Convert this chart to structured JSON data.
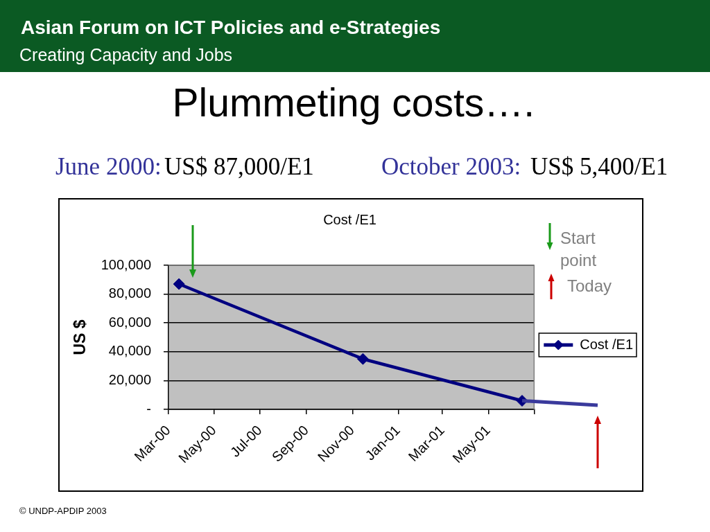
{
  "chart_data": {
    "type": "line",
    "title": "Cost /E1",
    "ylabel": "US $",
    "x": [
      "2000-03-15",
      "2000-11-15",
      "2001-06-15"
    ],
    "series": [
      {
        "name": "Cost /E1",
        "color": "#000080",
        "values": [
          87000,
          35000,
          6000
        ]
      }
    ],
    "xlim": [
      "2000-03",
      "2001-07"
    ],
    "xticks": [
      {
        "value": "2000-03",
        "label": "Mar-00"
      },
      {
        "value": "2000-05",
        "label": "May-00"
      },
      {
        "value": "2000-07",
        "label": "Jul-00"
      },
      {
        "value": "2000-09",
        "label": "Sep-00"
      },
      {
        "value": "2000-11",
        "label": "Nov-00"
      },
      {
        "value": "2001-01",
        "label": "Jan-01"
      },
      {
        "value": "2001-03",
        "label": "Mar-01"
      },
      {
        "value": "2001-05",
        "label": "May-01"
      },
      {
        "value": "2001-07",
        "label": null
      }
    ],
    "ylim": [
      0,
      100000
    ],
    "yticks": [
      {
        "value": 0,
        "label": "-"
      },
      {
        "value": 20000,
        "label": "20,000"
      },
      {
        "value": 40000,
        "label": "40,000"
      },
      {
        "value": 60000,
        "label": "60,000"
      },
      {
        "value": 80000,
        "label": "80,000"
      },
      {
        "value": 100000,
        "label": "100,000"
      }
    ],
    "grid": "y",
    "legend": "right",
    "marker": "diamond",
    "line_style": "solid",
    "annotations": [
      "Asian Forum on ICT Policies and e-Strategies",
      "Creating Capacity and Jobs",
      "Plummeting costs….",
      "June 2000:",
      "US$ 87,000/E1",
      "October 2003:",
      "US$ 5,400/E1",
      "Start point",
      "Today",
      "© UNDP-APDIP 2003"
    ]
  }
}
